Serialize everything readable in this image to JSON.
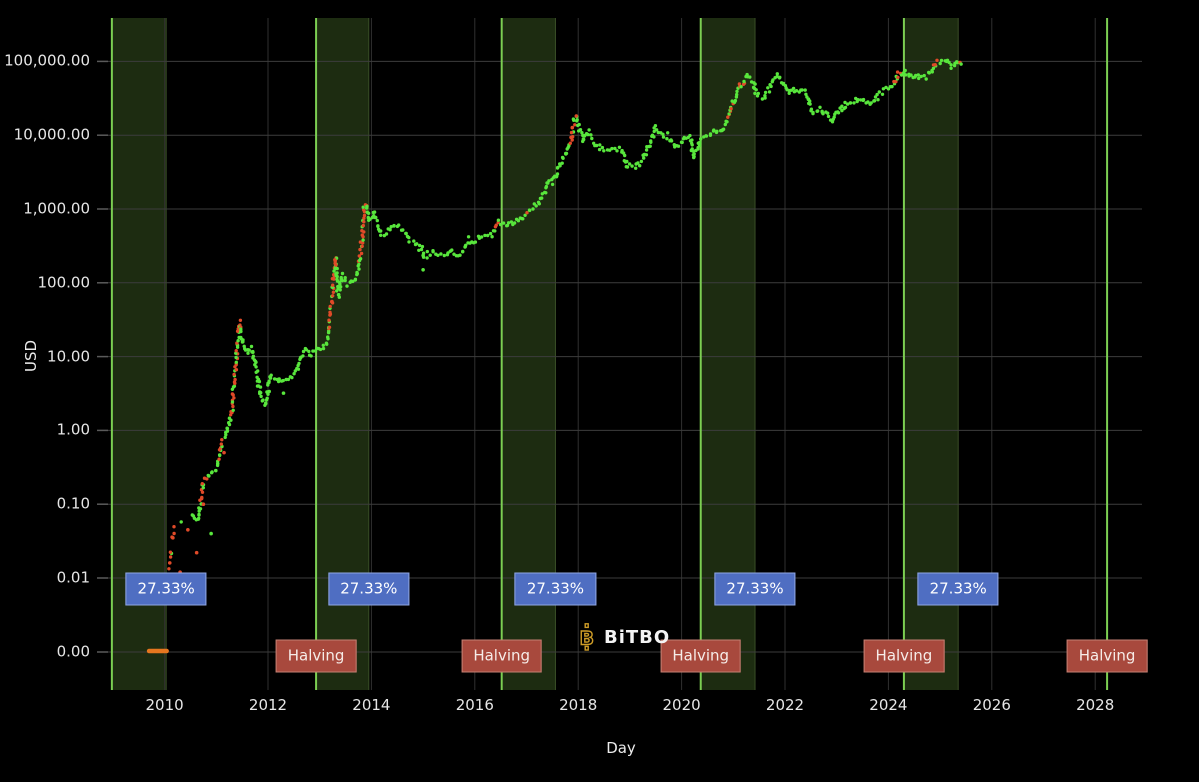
{
  "logo": {
    "text": "BiTBO"
  },
  "chart_data": {
    "type": "scatter",
    "title": "",
    "xlabel": "Day",
    "ylabel": "USD",
    "grid": true,
    "x_axis": {
      "ticks": [
        2010,
        2012,
        2014,
        2016,
        2018,
        2020,
        2022,
        2024,
        2026,
        2028
      ]
    },
    "y_axis": {
      "scale": "log",
      "tick_values": [
        0,
        0.01,
        0.1,
        1,
        10,
        100,
        1000,
        10000,
        100000
      ],
      "tick_labels": [
        "0.00",
        "0.01",
        "0.10",
        "1.00",
        "10.00",
        "100.00",
        "1,000.00",
        "10,000.00",
        "100,000.00"
      ]
    },
    "annotations": {
      "percent_label": "27.33%",
      "halving_label": "Halving"
    },
    "halving_lines_years": [
      2008.98,
      2012.93,
      2016.52,
      2020.37,
      2024.3,
      2028.23
    ],
    "halving_badge_years": [
      2012.93,
      2016.52,
      2020.37,
      2024.3,
      2028.23
    ],
    "epoch_bands": [
      {
        "start": 2008.98,
        "end": 2010.03
      },
      {
        "start": 2012.93,
        "end": 2013.95
      },
      {
        "start": 2016.52,
        "end": 2017.56
      },
      {
        "start": 2020.37,
        "end": 2021.42
      },
      {
        "start": 2024.3,
        "end": 2025.35
      }
    ],
    "percent_badge_years": [
      2010.03,
      2013.95,
      2017.56,
      2021.42,
      2025.35
    ],
    "zero_price_dash": {
      "start": 2009.7,
      "end": 2010.04,
      "value": 0
    },
    "price_points": [
      [
        2010.08,
        0.012
      ],
      [
        2010.2,
        0.05
      ],
      [
        2010.3,
        0.06
      ],
      [
        2010.45,
        0.06
      ],
      [
        2010.55,
        0.07
      ],
      [
        2010.65,
        0.06
      ],
      [
        2010.75,
        0.2
      ],
      [
        2010.9,
        0.25
      ],
      [
        2011.0,
        0.3
      ],
      [
        2011.1,
        0.7
      ],
      [
        2011.2,
        0.9
      ],
      [
        2011.3,
        1.8
      ],
      [
        2011.38,
        8
      ],
      [
        2011.45,
        29
      ],
      [
        2011.5,
        17
      ],
      [
        2011.55,
        14
      ],
      [
        2011.62,
        11
      ],
      [
        2011.7,
        13
      ],
      [
        2011.78,
        6
      ],
      [
        2011.85,
        3.2
      ],
      [
        2011.95,
        2.2
      ],
      [
        2012.05,
        5.5
      ],
      [
        2012.12,
        5
      ],
      [
        2012.2,
        4.5
      ],
      [
        2012.3,
        5
      ],
      [
        2012.42,
        5.2
      ],
      [
        2012.55,
        6.6
      ],
      [
        2012.65,
        10
      ],
      [
        2012.72,
        12
      ],
      [
        2012.8,
        10.5
      ],
      [
        2012.93,
        12.4
      ],
      [
        2013.05,
        13.5
      ],
      [
        2013.12,
        15
      ],
      [
        2013.18,
        25
      ],
      [
        2013.24,
        60
      ],
      [
        2013.28,
        140
      ],
      [
        2013.31,
        235
      ],
      [
        2013.34,
        80
      ],
      [
        2013.37,
        68
      ],
      [
        2013.42,
        120
      ],
      [
        2013.47,
        100
      ],
      [
        2013.55,
        97
      ],
      [
        2013.65,
        105
      ],
      [
        2013.72,
        125
      ],
      [
        2013.78,
        200
      ],
      [
        2013.82,
        420
      ],
      [
        2013.86,
        1000
      ],
      [
        2013.9,
        1130
      ],
      [
        2013.94,
        750
      ],
      [
        2014.0,
        820
      ],
      [
        2014.05,
        900
      ],
      [
        2014.12,
        620
      ],
      [
        2014.2,
        450
      ],
      [
        2014.3,
        480
      ],
      [
        2014.38,
        590
      ],
      [
        2014.45,
        620
      ],
      [
        2014.55,
        580
      ],
      [
        2014.65,
        480
      ],
      [
        2014.75,
        370
      ],
      [
        2014.85,
        350
      ],
      [
        2014.95,
        310
      ],
      [
        2015.03,
        210
      ],
      [
        2015.1,
        240
      ],
      [
        2015.18,
        255
      ],
      [
        2015.25,
        235
      ],
      [
        2015.35,
        230
      ],
      [
        2015.45,
        240
      ],
      [
        2015.55,
        270
      ],
      [
        2015.65,
        250
      ],
      [
        2015.72,
        235
      ],
      [
        2015.82,
        310
      ],
      [
        2015.88,
        390
      ],
      [
        2015.95,
        350
      ],
      [
        2016.05,
        400
      ],
      [
        2016.15,
        410
      ],
      [
        2016.25,
        420
      ],
      [
        2016.35,
        450
      ],
      [
        2016.42,
        580
      ],
      [
        2016.47,
        680
      ],
      [
        2016.52,
        655
      ],
      [
        2016.6,
        600
      ],
      [
        2016.67,
        620
      ],
      [
        2016.75,
        640
      ],
      [
        2016.85,
        720
      ],
      [
        2016.95,
        790
      ],
      [
        2017.05,
        930
      ],
      [
        2017.12,
        1050
      ],
      [
        2017.2,
        1150
      ],
      [
        2017.27,
        1250
      ],
      [
        2017.35,
        1700
      ],
      [
        2017.42,
        2400
      ],
      [
        2017.48,
        2500
      ],
      [
        2017.52,
        2300
      ],
      [
        2017.6,
        3400
      ],
      [
        2017.68,
        4300
      ],
      [
        2017.75,
        5300
      ],
      [
        2017.82,
        7200
      ],
      [
        2017.88,
        9800
      ],
      [
        2017.93,
        16500
      ],
      [
        2017.96,
        19200
      ],
      [
        2018.0,
        14000
      ],
      [
        2018.05,
        10500
      ],
      [
        2018.1,
        8500
      ],
      [
        2018.15,
        10800
      ],
      [
        2018.22,
        11000
      ],
      [
        2018.3,
        8200
      ],
      [
        2018.4,
        7000
      ],
      [
        2018.5,
        6400
      ],
      [
        2018.6,
        6700
      ],
      [
        2018.7,
        6400
      ],
      [
        2018.8,
        6500
      ],
      [
        2018.88,
        5600
      ],
      [
        2018.95,
        3600
      ],
      [
        2019.0,
        3800
      ],
      [
        2019.1,
        3700
      ],
      [
        2019.2,
        4100
      ],
      [
        2019.3,
        5300
      ],
      [
        2019.4,
        8000
      ],
      [
        2019.5,
        12600
      ],
      [
        2019.55,
        10800
      ],
      [
        2019.63,
        10200
      ],
      [
        2019.7,
        9500
      ],
      [
        2019.8,
        8300
      ],
      [
        2019.88,
        7300
      ],
      [
        2019.95,
        7200
      ],
      [
        2020.05,
        8400
      ],
      [
        2020.12,
        9800
      ],
      [
        2020.18,
        8600
      ],
      [
        2020.23,
        5000
      ],
      [
        2020.3,
        6500
      ],
      [
        2020.37,
        8800
      ],
      [
        2020.45,
        9200
      ],
      [
        2020.55,
        9400
      ],
      [
        2020.62,
        11500
      ],
      [
        2020.7,
        10600
      ],
      [
        2020.78,
        11500
      ],
      [
        2020.85,
        13500
      ],
      [
        2020.92,
        18500
      ],
      [
        2020.99,
        28000
      ],
      [
        2021.05,
        33000
      ],
      [
        2021.12,
        47000
      ],
      [
        2021.18,
        50000
      ],
      [
        2021.22,
        57000
      ],
      [
        2021.28,
        62500
      ],
      [
        2021.33,
        58000
      ],
      [
        2021.4,
        50000
      ],
      [
        2021.45,
        36000
      ],
      [
        2021.5,
        34500
      ],
      [
        2021.55,
        32500
      ],
      [
        2021.6,
        34000
      ],
      [
        2021.68,
        44000
      ],
      [
        2021.75,
        48500
      ],
      [
        2021.8,
        60000
      ],
      [
        2021.86,
        66500
      ],
      [
        2021.9,
        58000
      ],
      [
        2021.95,
        50000
      ],
      [
        2022.0,
        46500
      ],
      [
        2022.05,
        42500
      ],
      [
        2022.1,
        38500
      ],
      [
        2022.15,
        43500
      ],
      [
        2022.22,
        40000
      ],
      [
        2022.3,
        42000
      ],
      [
        2022.38,
        39000
      ],
      [
        2022.45,
        30000
      ],
      [
        2022.52,
        20000
      ],
      [
        2022.6,
        21000
      ],
      [
        2022.68,
        23000
      ],
      [
        2022.75,
        20000
      ],
      [
        2022.82,
        19200
      ],
      [
        2022.9,
        16300
      ],
      [
        2022.97,
        16800
      ],
      [
        2023.05,
        23000
      ],
      [
        2023.12,
        22500
      ],
      [
        2023.2,
        28000
      ],
      [
        2023.28,
        28500
      ],
      [
        2023.35,
        27000
      ],
      [
        2023.42,
        30500
      ],
      [
        2023.5,
        30300
      ],
      [
        2023.58,
        29000
      ],
      [
        2023.65,
        26000
      ],
      [
        2023.72,
        27500
      ],
      [
        2023.8,
        34500
      ],
      [
        2023.88,
        37500
      ],
      [
        2023.95,
        42500
      ],
      [
        2024.0,
        44000
      ],
      [
        2024.05,
        42500
      ],
      [
        2024.1,
        48000
      ],
      [
        2024.15,
        57000
      ],
      [
        2024.2,
        68000
      ],
      [
        2024.23,
        73000
      ],
      [
        2024.28,
        64000
      ],
      [
        2024.33,
        70000
      ],
      [
        2024.38,
        64500
      ],
      [
        2024.45,
        61000
      ],
      [
        2024.5,
        57000
      ],
      [
        2024.55,
        65000
      ],
      [
        2024.6,
        58500
      ],
      [
        2024.65,
        61000
      ],
      [
        2024.7,
        64000
      ],
      [
        2024.75,
        62500
      ],
      [
        2024.8,
        68000
      ],
      [
        2024.85,
        75500
      ],
      [
        2024.9,
        90000
      ],
      [
        2024.95,
        98000
      ],
      [
        2025.0,
        94500
      ],
      [
        2025.03,
        102000
      ],
      [
        2025.08,
        97000
      ],
      [
        2025.12,
        104500
      ],
      [
        2025.17,
        96500
      ],
      [
        2025.22,
        84000
      ],
      [
        2025.28,
        83500
      ],
      [
        2025.33,
        94000
      ],
      [
        2025.38,
        103500
      ],
      [
        2025.42,
        97000
      ],
      [
        2025.45,
        103000
      ]
    ],
    "red_segments": [
      [
        2010.05,
        2010.28
      ],
      [
        2010.7,
        2010.82
      ],
      [
        2011.03,
        2011.14
      ],
      [
        2011.28,
        2011.47
      ],
      [
        2013.17,
        2013.32
      ],
      [
        2013.77,
        2013.9
      ],
      [
        2016.4,
        2016.47
      ],
      [
        2017.0,
        2017.08
      ],
      [
        2017.84,
        2017.97
      ],
      [
        2020.88,
        2021.0
      ],
      [
        2021.08,
        2021.2
      ],
      [
        2024.11,
        2024.24
      ],
      [
        2024.87,
        2024.97
      ],
      [
        2025.33,
        2025.4
      ]
    ],
    "stray_points": [
      [
        2010.1,
        0.016,
        "red"
      ],
      [
        2010.16,
        0.035,
        "red"
      ],
      [
        2010.3,
        0.012,
        "red"
      ],
      [
        2010.45,
        0.045,
        "red"
      ],
      [
        2010.55,
        0.008,
        "green"
      ],
      [
        2010.75,
        0.1,
        "red"
      ],
      [
        2010.9,
        0.04,
        "green"
      ],
      [
        2011.15,
        0.5,
        "red"
      ],
      [
        2010.62,
        0.022,
        "red"
      ],
      [
        2012.3,
        3.2,
        "green"
      ],
      [
        2015.0,
        150,
        "green"
      ]
    ],
    "colors": {
      "background": "#000000",
      "band_fill": "#1d2c11",
      "band_edge": "#3a4f27",
      "halving_line": "#7ccf52",
      "grid_horizontal": "#3d3d3d",
      "grid_vertical": "#303030",
      "tick_mark": "#5a5a5a",
      "dot_green": "#58e63c",
      "dot_red": "#e04a28",
      "zero_dash": "#e5761f",
      "pct_badge_bg": "#4f6ec2",
      "pct_badge_border": "#8fa6e2",
      "halving_badge_bg": "#a8493d",
      "halving_badge_border": "#c48173",
      "logo_gold": "#cf9d27"
    }
  }
}
